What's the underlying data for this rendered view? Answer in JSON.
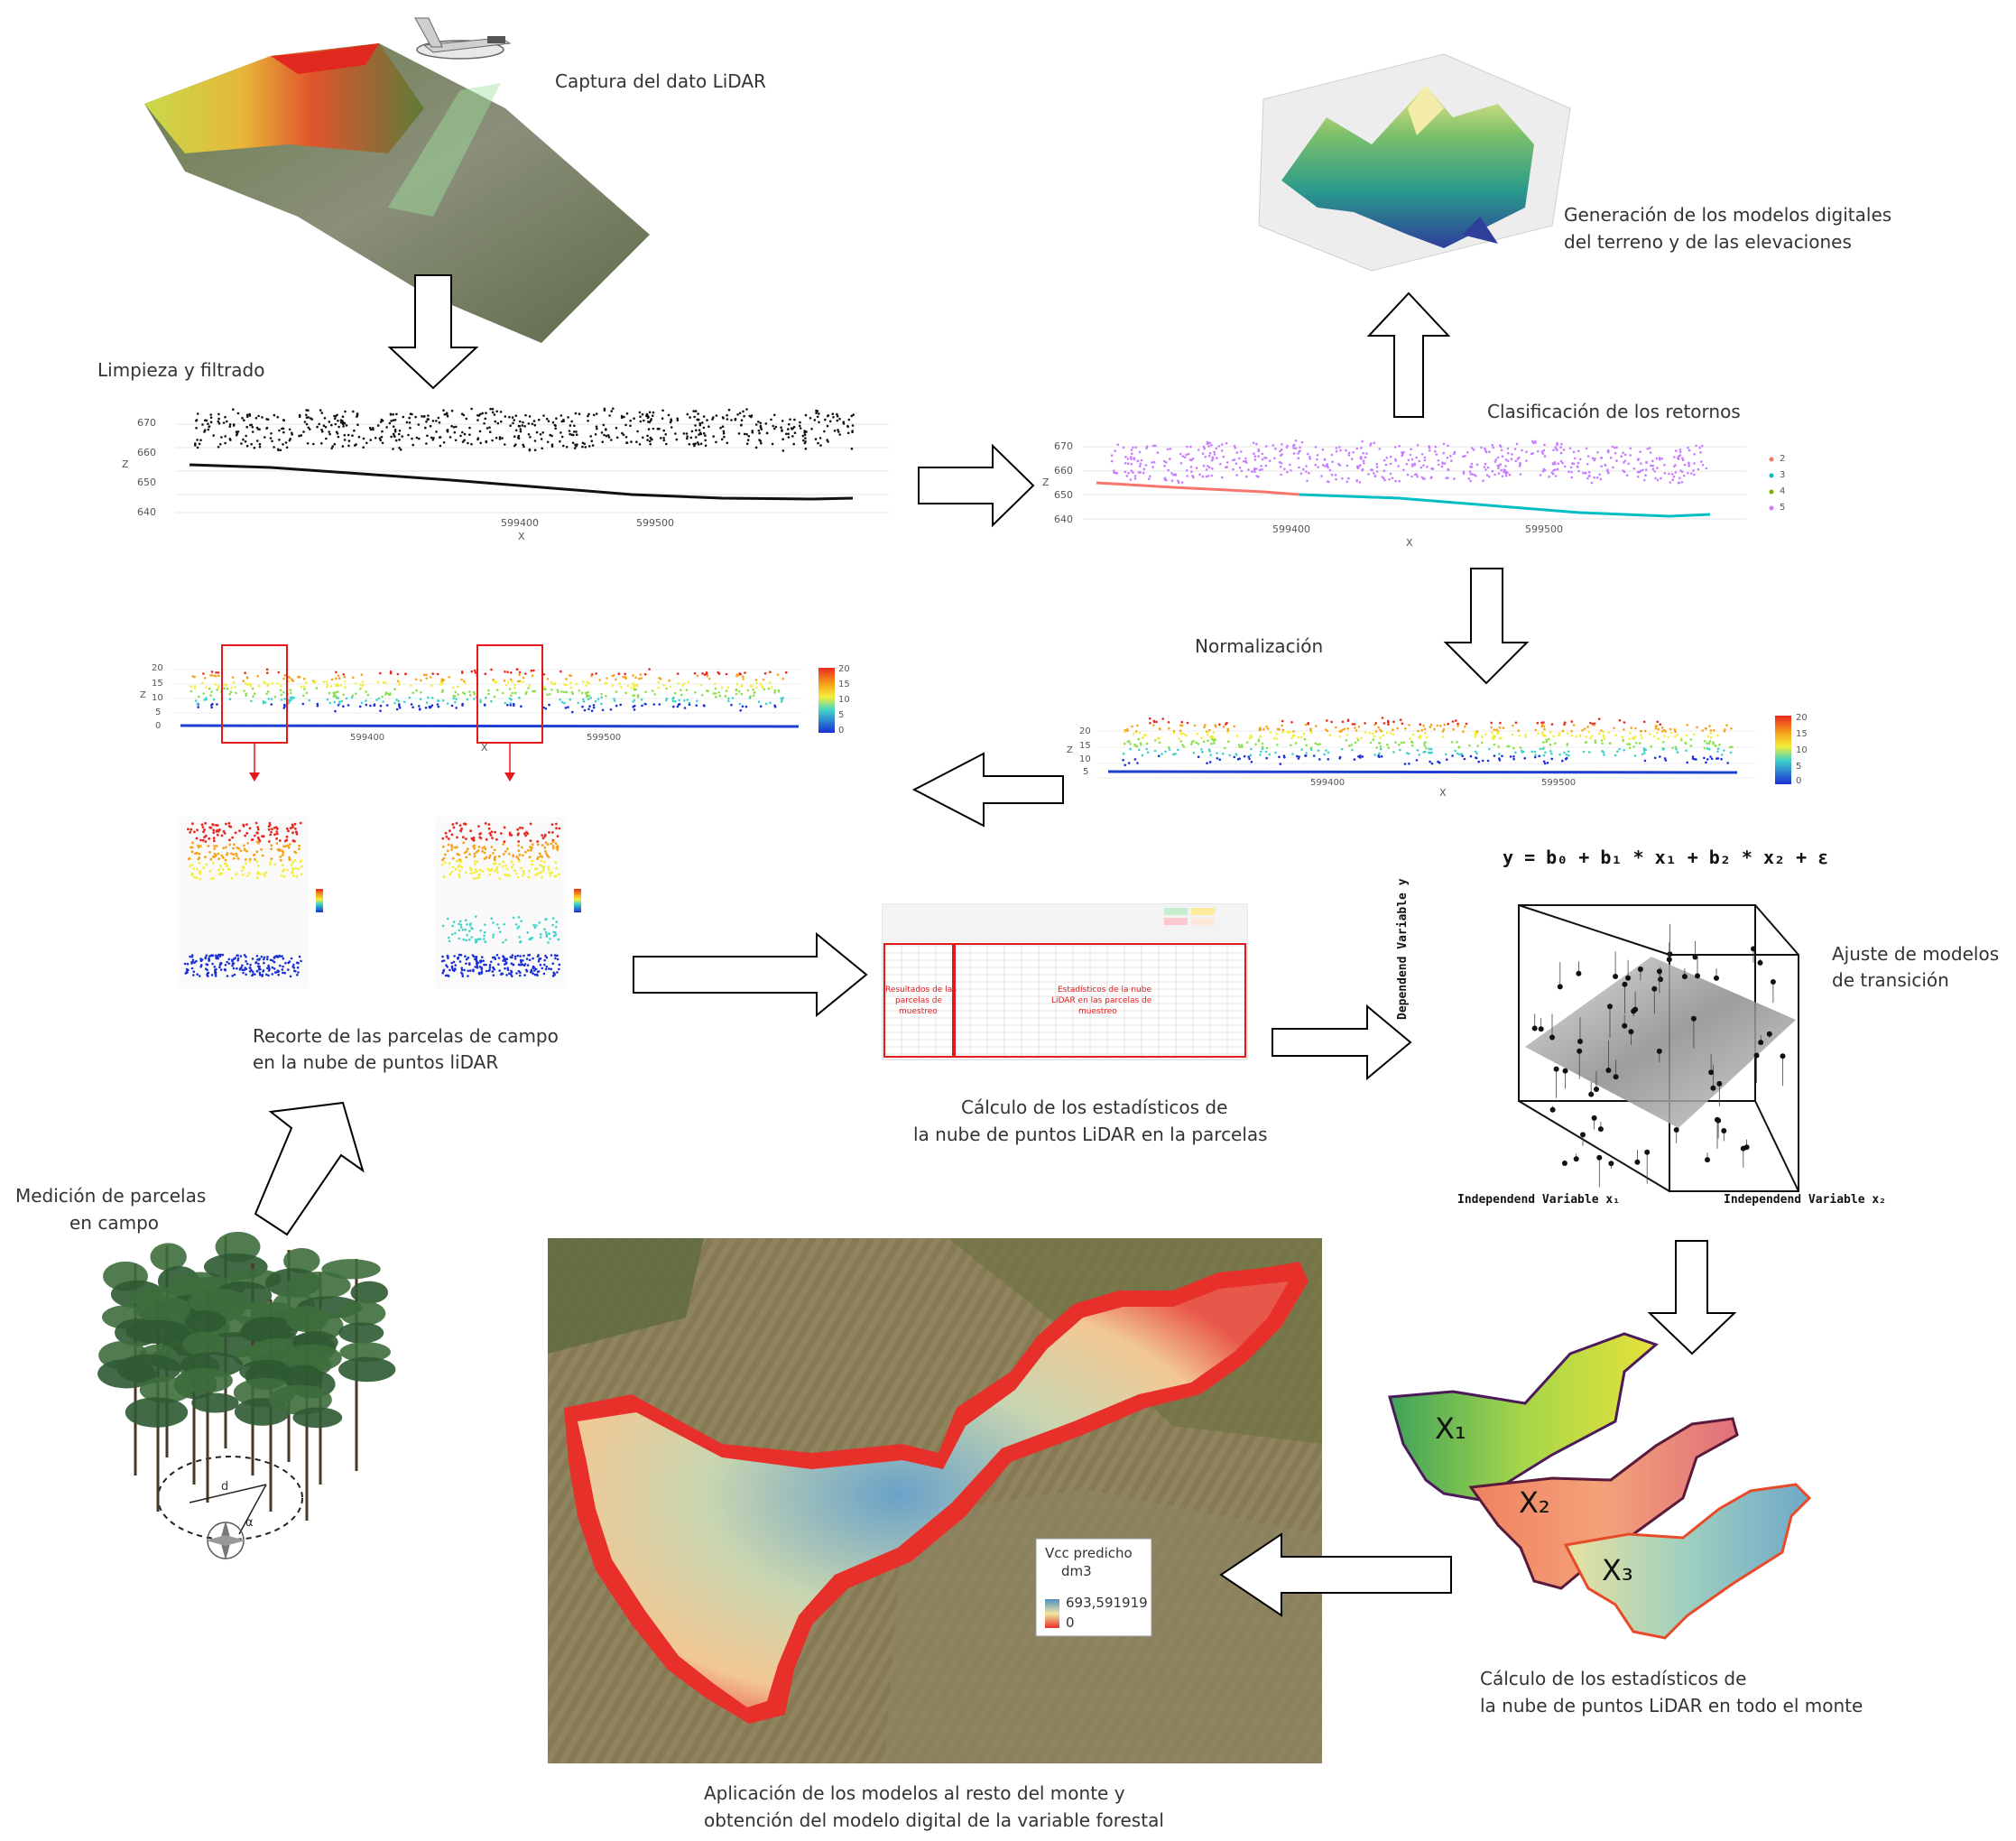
{
  "steps": {
    "capture": "Captura del dato LiDAR",
    "dem": [
      "Generación de los modelos digitales",
      "del terreno y de las elevaciones"
    ],
    "cleaning": "Limpieza y filtrado",
    "classification": "Clasificación de los retornos",
    "normalization": "Normalización",
    "clip": [
      "Recorte de las parcelas de campo",
      "en la nube de puntos liDAR"
    ],
    "plot_stats": [
      "Cálculo de los estadísticos de",
      "la nube de puntos LiDAR en la parcelas"
    ],
    "field": [
      "Medición de parcelas",
      "en campo"
    ],
    "model_fit": [
      "Ajuste de modelos",
      "de transición"
    ],
    "forest_stats": [
      "Cálculo de los estadísticos de",
      "la nube de puntos LiDAR en todo el monte"
    ],
    "application": [
      "Aplicación de los modelos al resto del monte y",
      "obtención del modelo digital de la variable forestal"
    ]
  },
  "profile_axes": {
    "z_label": "Z",
    "x_label": "X",
    "x_ticks": [
      "599400",
      "599500"
    ],
    "z_ticks_raw": [
      "670",
      "660",
      "650",
      "640"
    ],
    "z_ticks_norm": [
      "20",
      "15",
      "10",
      "5",
      "0"
    ],
    "colorbar_ticks": [
      "20",
      "15",
      "10",
      "5",
      "0"
    ],
    "class_legend": [
      "2",
      "3",
      "4",
      "5"
    ]
  },
  "spreadsheet": {
    "left_label": [
      "Resultados de las",
      "parcelas de",
      "muestreo"
    ],
    "right_label": [
      "Estadísticos de la nube",
      "LiDAR en las parcelas de",
      "muestreo"
    ]
  },
  "regression": {
    "equation": "y = b₀ + b₁ * x₁ + b₂ * x₂ + ε",
    "y_axis": "Dependend Variable y",
    "x1_axis": "Independend Variable x₁",
    "x2_axis": "Independend Variable x₂"
  },
  "rasters": [
    "X₁",
    "X₂",
    "X₃"
  ],
  "legend": {
    "title": "Vcc predicho",
    "unit": "dm3",
    "max": "693,591919",
    "min": "0"
  },
  "field_plot": {
    "distance_label": "d",
    "angle_label": "α"
  },
  "colors": {
    "arrow_stroke": "#000000",
    "highlight_red": "#e31a1c",
    "class_purple": "#c77dff",
    "class_red": "#f8766d",
    "class_cyan": "#00bfc4",
    "ground_blue": "#1f3fd1",
    "map_red": "#e8302a",
    "map_low": "#f2d99a",
    "map_high": "#4f8fc0"
  }
}
